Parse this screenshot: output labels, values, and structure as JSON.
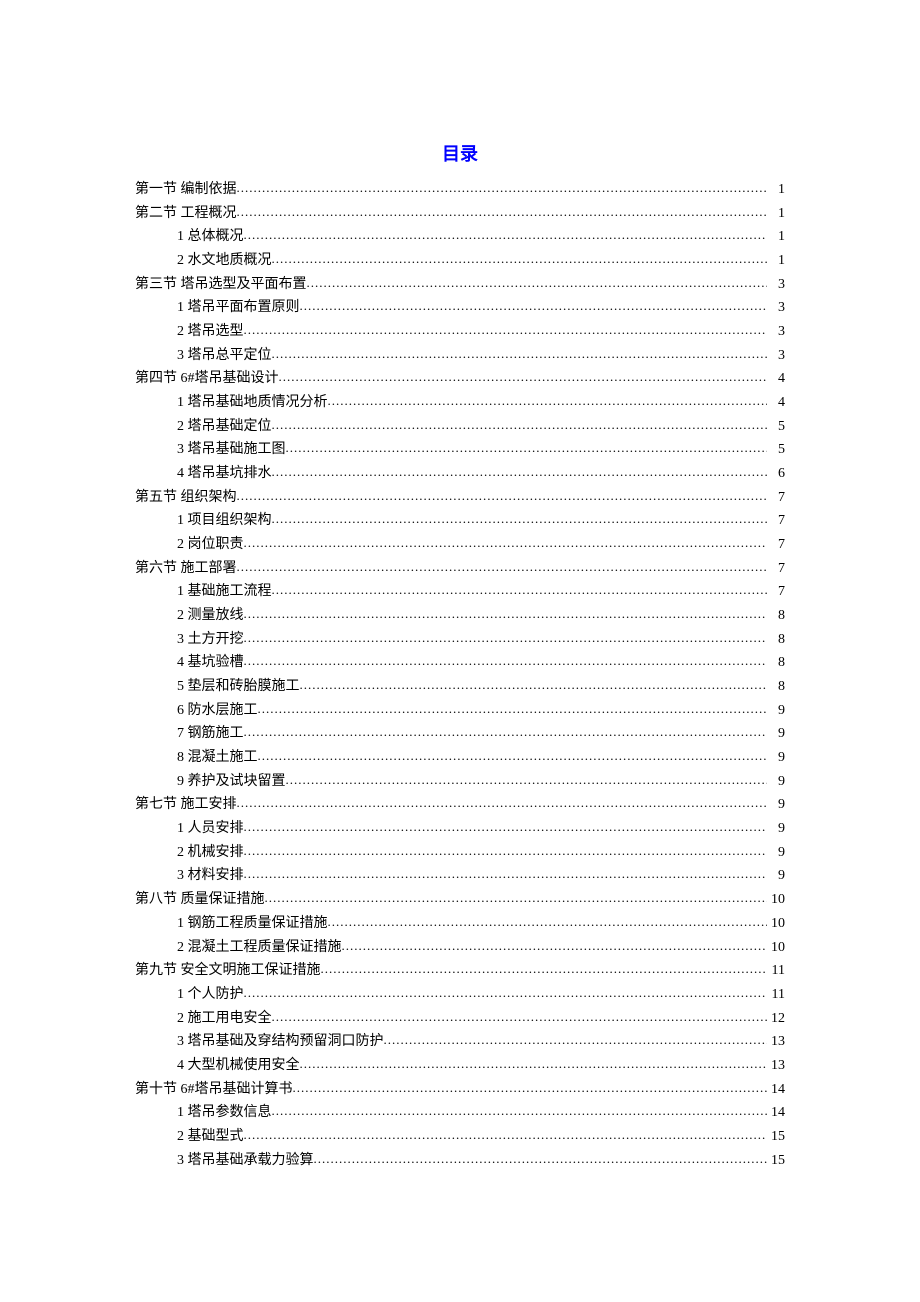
{
  "title": "目录",
  "colors": {
    "title_color": "#0000ff",
    "text_color": "#000000",
    "background": "#ffffff"
  },
  "typography": {
    "title_fontsize": 18,
    "entry_fontsize": 14,
    "line_height": 1.62
  },
  "entries": [
    {
      "level": 1,
      "label": "第一节  编制依据",
      "page": "1"
    },
    {
      "level": 1,
      "label": "第二节  工程概况",
      "page": "1"
    },
    {
      "level": 2,
      "label": "1  总体概况",
      "page": "1"
    },
    {
      "level": 2,
      "label": "2  水文地质概况",
      "page": "1"
    },
    {
      "level": 1,
      "label": "第三节  塔吊选型及平面布置",
      "page": "3"
    },
    {
      "level": 2,
      "label": "1  塔吊平面布置原则",
      "page": "3"
    },
    {
      "level": 2,
      "label": "2  塔吊选型",
      "page": "3"
    },
    {
      "level": 2,
      "label": "3  塔吊总平定位",
      "page": "3"
    },
    {
      "level": 1,
      "label": "第四节  6#塔吊基础设计",
      "page": "4"
    },
    {
      "level": 2,
      "label": "1  塔吊基础地质情况分析",
      "page": "4"
    },
    {
      "level": 2,
      "label": "2  塔吊基础定位",
      "page": "5"
    },
    {
      "level": 2,
      "label": "3  塔吊基础施工图",
      "page": "5"
    },
    {
      "level": 2,
      "label": "4  塔吊基坑排水",
      "page": "6"
    },
    {
      "level": 1,
      "label": "第五节  组织架构",
      "page": "7"
    },
    {
      "level": 2,
      "label": "1  项目组织架构",
      "page": "7"
    },
    {
      "level": 2,
      "label": "2  岗位职责",
      "page": "7"
    },
    {
      "level": 1,
      "label": "第六节  施工部署",
      "page": "7"
    },
    {
      "level": 2,
      "label": "1  基础施工流程",
      "page": "7"
    },
    {
      "level": 2,
      "label": "2  测量放线",
      "page": "8"
    },
    {
      "level": 2,
      "label": "3  土方开挖",
      "page": "8"
    },
    {
      "level": 2,
      "label": "4  基坑验槽",
      "page": "8"
    },
    {
      "level": 2,
      "label": "5  垫层和砖胎膜施工",
      "page": "8"
    },
    {
      "level": 2,
      "label": "6  防水层施工",
      "page": "9"
    },
    {
      "level": 2,
      "label": "7  钢筋施工",
      "page": "9"
    },
    {
      "level": 2,
      "label": "8  混凝土施工",
      "page": "9"
    },
    {
      "level": 2,
      "label": "9  养护及试块留置",
      "page": "9"
    },
    {
      "level": 1,
      "label": "第七节  施工安排",
      "page": "9"
    },
    {
      "level": 2,
      "label": "1  人员安排",
      "page": "9"
    },
    {
      "level": 2,
      "label": "2  机械安排",
      "page": "9"
    },
    {
      "level": 2,
      "label": "3  材料安排",
      "page": "9"
    },
    {
      "level": 1,
      "label": "第八节  质量保证措施",
      "page": "10"
    },
    {
      "level": 2,
      "label": "1  钢筋工程质量保证措施",
      "page": "10"
    },
    {
      "level": 2,
      "label": "2  混凝土工程质量保证措施",
      "page": "10"
    },
    {
      "level": 1,
      "label": "第九节  安全文明施工保证措施",
      "page": "11"
    },
    {
      "level": 2,
      "label": "1  个人防护",
      "page": "11"
    },
    {
      "level": 2,
      "label": "2  施工用电安全",
      "page": "12"
    },
    {
      "level": 2,
      "label": "3  塔吊基础及穿结构预留洞口防护",
      "page": "13"
    },
    {
      "level": 2,
      "label": "4  大型机械使用安全",
      "page": "13"
    },
    {
      "level": 1,
      "label": "第十节  6#塔吊基础计算书",
      "page": "14"
    },
    {
      "level": 2,
      "label": "1  塔吊参数信息",
      "page": "14"
    },
    {
      "level": 2,
      "label": "2  基础型式",
      "page": "15"
    },
    {
      "level": 2,
      "label": "3  塔吊基础承载力验算",
      "page": "15"
    }
  ]
}
